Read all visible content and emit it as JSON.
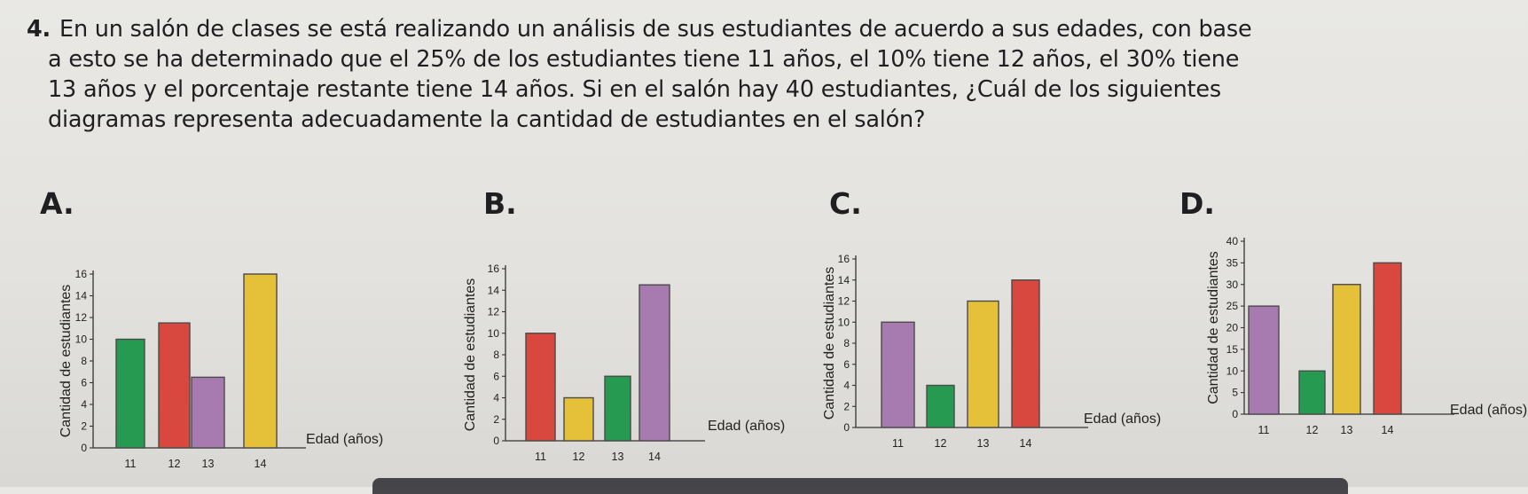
{
  "question": {
    "number": "4.",
    "lines": [
      "En un salón de clases se está realizando un análisis de sus estudiantes de acuerdo a sus edades, con base",
      "a esto se ha determinado que el 25% de los estudiantes tiene 11 años, el 10% tiene 12 años, el 30% tiene",
      "13 años y el porcentaje restante tiene 14 años. Si en el salón hay 40 estudiantes, ¿Cuál de los siguientes",
      "diagramas representa adecuadamente la cantidad de estudiantes en el salón?"
    ]
  },
  "colors": {
    "green": "#279a52",
    "red": "#d8483f",
    "purple": "#a77bb0",
    "yellow": "#e5c13a"
  },
  "chart_data": [
    {
      "option": "A.",
      "type": "bar",
      "ylabel": "Cantidad de estudiantes",
      "xlabel": "Edad (años)",
      "categories": [
        "11",
        "12",
        "13",
        "14"
      ],
      "values": [
        10,
        11.5,
        6.5,
        16
      ],
      "bar_colors": [
        "green",
        "red",
        "purple",
        "yellow"
      ],
      "yticks": [
        0,
        2,
        4,
        6,
        8,
        10,
        12,
        14,
        16
      ],
      "ylim": [
        0,
        16
      ]
    },
    {
      "option": "B.",
      "type": "bar",
      "ylabel": "Cantidad de estudiantes",
      "xlabel": "Edad (años)",
      "categories": [
        "11",
        "12",
        "13",
        "14"
      ],
      "values": [
        10,
        4,
        6,
        14.5
      ],
      "bar_colors": [
        "red",
        "yellow",
        "green",
        "purple"
      ],
      "yticks": [
        0,
        2,
        4,
        6,
        8,
        10,
        12,
        14,
        16
      ],
      "ylim": [
        0,
        16
      ]
    },
    {
      "option": "C.",
      "type": "bar",
      "ylabel": "Cantidad de estudiantes",
      "xlabel": "Edad (años)",
      "categories": [
        "11",
        "12",
        "13",
        "14"
      ],
      "values": [
        10,
        4,
        12,
        14
      ],
      "bar_colors": [
        "purple",
        "green",
        "yellow",
        "red"
      ],
      "yticks": [
        0,
        2,
        4,
        6,
        8,
        10,
        12,
        14,
        16
      ],
      "ylim": [
        0,
        16
      ]
    },
    {
      "option": "D.",
      "type": "bar",
      "ylabel": "Cantidad de estudiantes",
      "xlabel": "Edad (años)",
      "categories": [
        "11",
        "12",
        "13",
        "14"
      ],
      "values": [
        25,
        10,
        30,
        35
      ],
      "bar_colors": [
        "purple",
        "green",
        "yellow",
        "red"
      ],
      "yticks": [
        0,
        5,
        10,
        15,
        20,
        25,
        30,
        35,
        40
      ],
      "ylim": [
        0,
        40
      ]
    }
  ]
}
